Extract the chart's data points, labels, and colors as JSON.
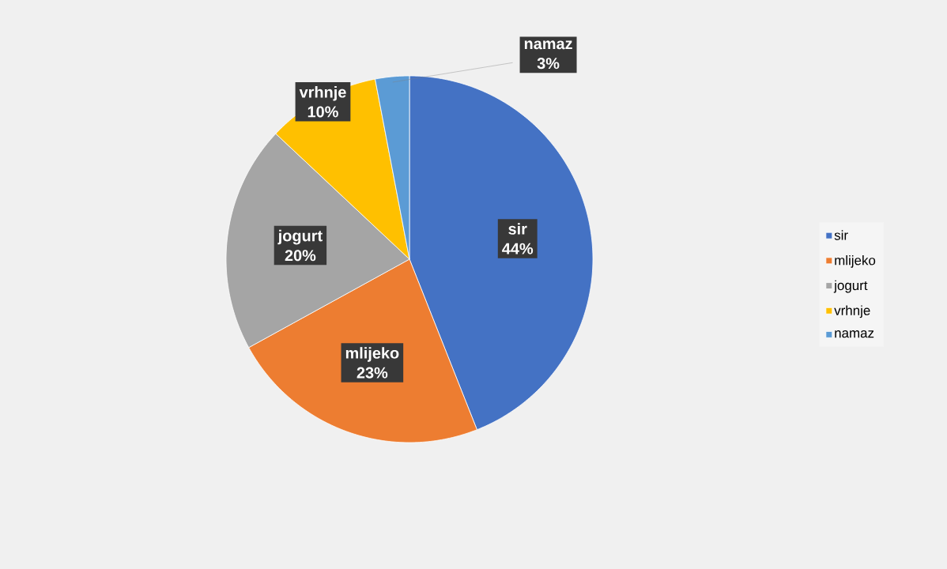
{
  "chart_data": {
    "type": "pie",
    "categories": [
      "sir",
      "mlijeko",
      "jogurt",
      "vrhnje",
      "namaz"
    ],
    "values": [
      44,
      23,
      20,
      10,
      3
    ],
    "value_labels": [
      "44%",
      "23%",
      "20%",
      "10%",
      "3%"
    ],
    "colors": [
      "#4472c4",
      "#ed7d31",
      "#a5a5a5",
      "#ffc000",
      "#5b9bd5"
    ],
    "legend": "right"
  }
}
